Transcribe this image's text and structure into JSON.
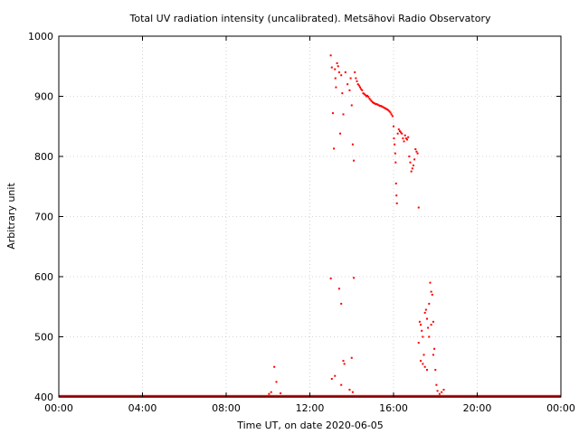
{
  "chart_data": {
    "type": "scatter",
    "title": "Total UV radiation intensity (uncalibrated). Metsähovi Radio Observatory",
    "xlabel": "Time UT, on date 2020-06-05",
    "ylabel": "Arbitrary unit",
    "xlim": [
      0,
      24
    ],
    "ylim": [
      400,
      1000
    ],
    "x_ticks": [
      0,
      4,
      8,
      12,
      16,
      20,
      24
    ],
    "x_tick_labels": [
      "00:00",
      "04:00",
      "08:00",
      "12:00",
      "16:00",
      "20:00",
      "00:00"
    ],
    "y_ticks": [
      400,
      500,
      600,
      700,
      800,
      900,
      1000
    ],
    "y_tick_labels": [
      "400",
      "500",
      "600",
      "700",
      "800",
      "900",
      "1000"
    ],
    "grid": true,
    "series": [
      {
        "color": "#ff0000",
        "baseline": {
          "x_start": 0,
          "x_end": 24,
          "y": 401
        },
        "points": [
          [
            10.05,
            405
          ],
          [
            10.15,
            408
          ],
          [
            10.3,
            450
          ],
          [
            10.4,
            425
          ],
          [
            10.6,
            406
          ],
          [
            13.0,
            968
          ],
          [
            13.05,
            948
          ],
          [
            13.1,
            872
          ],
          [
            13.15,
            813
          ],
          [
            13.2,
            945
          ],
          [
            13.22,
            930
          ],
          [
            13.25,
            915
          ],
          [
            13.3,
            955
          ],
          [
            13.35,
            950
          ],
          [
            13.4,
            940
          ],
          [
            13.45,
            838
          ],
          [
            13.5,
            935
          ],
          [
            13.55,
            905
          ],
          [
            13.6,
            870
          ],
          [
            13.7,
            940
          ],
          [
            13.8,
            920
          ],
          [
            13.9,
            910
          ],
          [
            13.95,
            930
          ],
          [
            14.0,
            885
          ],
          [
            14.05,
            820
          ],
          [
            14.1,
            793
          ],
          [
            14.15,
            940
          ],
          [
            14.2,
            930
          ],
          [
            14.25,
            925
          ],
          [
            14.3,
            920
          ],
          [
            14.35,
            918
          ],
          [
            14.4,
            915
          ],
          [
            14.45,
            912
          ],
          [
            14.5,
            910
          ],
          [
            14.55,
            905
          ],
          [
            14.6,
            904
          ],
          [
            14.65,
            902
          ],
          [
            14.7,
            900
          ],
          [
            14.75,
            901
          ],
          [
            14.8,
            899
          ],
          [
            14.85,
            896
          ],
          [
            14.9,
            894
          ],
          [
            14.95,
            892
          ],
          [
            15.0,
            890
          ],
          [
            15.05,
            889
          ],
          [
            15.1,
            888
          ],
          [
            15.15,
            887
          ],
          [
            15.2,
            887
          ],
          [
            15.25,
            886
          ],
          [
            15.3,
            885
          ],
          [
            15.35,
            884
          ],
          [
            15.4,
            884
          ],
          [
            15.45,
            883
          ],
          [
            15.5,
            882
          ],
          [
            15.55,
            881
          ],
          [
            15.6,
            880
          ],
          [
            15.65,
            879
          ],
          [
            15.7,
            878
          ],
          [
            15.75,
            877
          ],
          [
            15.8,
            875
          ],
          [
            15.85,
            873
          ],
          [
            15.9,
            870
          ],
          [
            15.95,
            867
          ],
          [
            16.0,
            850
          ],
          [
            16.02,
            830
          ],
          [
            16.05,
            820
          ],
          [
            16.08,
            805
          ],
          [
            16.1,
            790
          ],
          [
            16.12,
            755
          ],
          [
            16.14,
            735
          ],
          [
            16.16,
            722
          ],
          [
            16.2,
            838
          ],
          [
            16.25,
            845
          ],
          [
            16.3,
            842
          ],
          [
            16.35,
            840
          ],
          [
            16.4,
            838
          ],
          [
            16.45,
            830
          ],
          [
            16.5,
            825
          ],
          [
            16.55,
            835
          ],
          [
            16.6,
            830
          ],
          [
            16.65,
            828
          ],
          [
            16.7,
            832
          ],
          [
            16.75,
            800
          ],
          [
            16.8,
            790
          ],
          [
            16.85,
            775
          ],
          [
            16.9,
            780
          ],
          [
            16.95,
            785
          ],
          [
            17.0,
            795
          ],
          [
            17.05,
            812
          ],
          [
            17.1,
            808
          ],
          [
            17.15,
            805
          ],
          [
            17.2,
            715
          ],
          [
            13.0,
            597
          ],
          [
            13.4,
            580
          ],
          [
            13.5,
            555
          ],
          [
            14.1,
            598
          ],
          [
            13.05,
            430
          ],
          [
            13.2,
            435
          ],
          [
            13.5,
            420
          ],
          [
            13.6,
            460
          ],
          [
            13.65,
            455
          ],
          [
            13.9,
            412
          ],
          [
            14.0,
            465
          ],
          [
            14.05,
            408
          ],
          [
            17.2,
            490
          ],
          [
            17.25,
            525
          ],
          [
            17.3,
            520
          ],
          [
            17.35,
            510
          ],
          [
            17.4,
            500
          ],
          [
            17.45,
            470
          ],
          [
            17.5,
            540
          ],
          [
            17.55,
            545
          ],
          [
            17.6,
            530
          ],
          [
            17.65,
            515
          ],
          [
            17.7,
            555
          ],
          [
            17.75,
            590
          ],
          [
            17.8,
            575
          ],
          [
            17.85,
            570
          ],
          [
            17.9,
            525
          ],
          [
            17.95,
            480
          ],
          [
            18.0,
            445
          ],
          [
            18.05,
            420
          ],
          [
            18.1,
            410
          ],
          [
            18.2,
            405
          ],
          [
            18.3,
            408
          ],
          [
            18.4,
            412
          ],
          [
            17.3,
            460
          ],
          [
            17.4,
            455
          ],
          [
            17.5,
            450
          ],
          [
            17.6,
            445
          ],
          [
            17.7,
            500
          ],
          [
            17.8,
            520
          ],
          [
            17.9,
            470
          ]
        ]
      }
    ]
  }
}
